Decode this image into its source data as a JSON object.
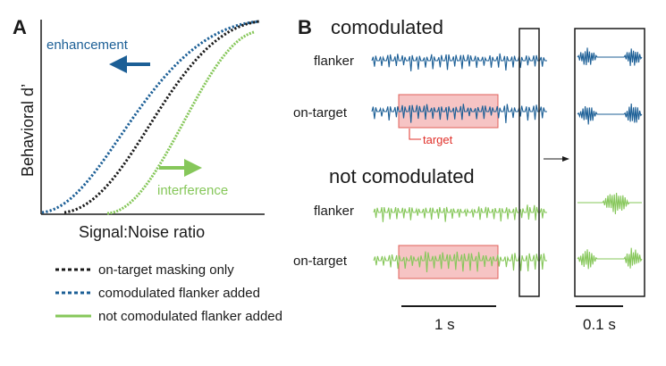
{
  "panels": {
    "a": {
      "letter": "A",
      "ylabel": "Behavioral d’",
      "xlabel": "Signal:Noise ratio",
      "enhancement_label": "enhancement",
      "interference_label": "interference"
    },
    "b": {
      "letter": "B",
      "comod_heading": "comodulated",
      "not_comod_heading": "not comodulated",
      "flanker_label": "flanker",
      "on_target_label": "on-target",
      "target_label": "target",
      "scale_long": "1 s",
      "scale_short": "0.1 s"
    }
  },
  "legend": [
    {
      "label": "on-target masking only",
      "style": "dotted-black"
    },
    {
      "label": "comodulated flanker added",
      "style": "dotted-blue"
    },
    {
      "label": "not comodulated flanker added",
      "style": "solid-green"
    }
  ],
  "colors": {
    "blue": "#1c5f96",
    "green": "#86c75a",
    "black": "#1a1a1a",
    "target_fill": "#f6c4c4",
    "target_stroke": "#e0605a",
    "target_text": "#e0302a"
  }
}
